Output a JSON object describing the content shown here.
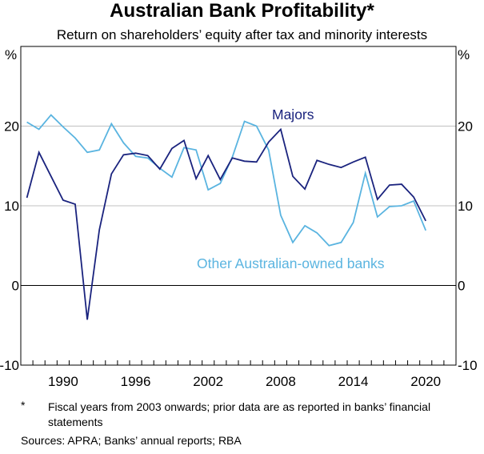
{
  "title": "Australian Bank Profitability*",
  "subtitle": "Return on shareholders’ equity after tax and minority interests",
  "footnote": {
    "marker": "*",
    "text": "Fiscal years from 2003 onwards; prior data are as reported in banks’ financial statements"
  },
  "sources": "Sources: APRA; Banks’ annual reports; RBA",
  "colors": {
    "majors": "#1a237e",
    "other": "#5ab4e0",
    "grid": "#c0c0c0"
  },
  "chart_data": {
    "type": "line",
    "title": "Australian Bank Profitability*",
    "subtitle": "Return on shareholders’ equity after tax and minority interests",
    "unit_left": "%",
    "unit_right": "%",
    "ylim": [
      -10,
      30
    ],
    "yticks": [
      -10,
      0,
      10,
      20
    ],
    "ytick_labels": [
      "-10",
      "0",
      "10",
      "20"
    ],
    "xlim": [
      1986.5,
      2022.5
    ],
    "xticks": [
      1990,
      1996,
      2002,
      2008,
      2014,
      2020
    ],
    "xtick_labels": [
      "1990",
      "1996",
      "2002",
      "2008",
      "2014",
      "2020"
    ],
    "grid": true,
    "series": [
      {
        "name": "Majors",
        "x": [
          1987,
          1988,
          1989,
          1990,
          1991,
          1992,
          1993,
          1994,
          1995,
          1996,
          1997,
          1998,
          1999,
          2000,
          2001,
          2002,
          2003,
          2004,
          2005,
          2006,
          2007,
          2008,
          2009,
          2010,
          2011,
          2012,
          2013,
          2014,
          2015,
          2016,
          2017,
          2018,
          2019,
          2020
        ],
        "values": [
          11.0,
          16.7,
          13.7,
          10.7,
          10.2,
          -4.3,
          7.0,
          14.0,
          16.4,
          16.6,
          16.3,
          14.6,
          17.2,
          18.2,
          13.4,
          16.3,
          13.3,
          16.0,
          15.6,
          15.5,
          18.0,
          19.6,
          13.7,
          12.1,
          15.7,
          15.2,
          14.8,
          15.5,
          16.1,
          10.8,
          12.6,
          12.7,
          11.1,
          8.1
        ]
      },
      {
        "name": "Other Australian-owned banks",
        "x": [
          1987,
          1988,
          1989,
          1990,
          1991,
          1992,
          1993,
          1994,
          1995,
          1996,
          1997,
          1998,
          1999,
          2000,
          2001,
          2002,
          2003,
          2004,
          2005,
          2006,
          2007,
          2008,
          2009,
          2010,
          2011,
          2012,
          2013,
          2014,
          2015,
          2016,
          2017,
          2018,
          2019,
          2020
        ],
        "values": [
          20.5,
          19.6,
          21.4,
          19.9,
          18.5,
          16.7,
          17.0,
          20.3,
          17.9,
          16.2,
          16.0,
          14.7,
          13.6,
          17.3,
          17.0,
          12.0,
          12.8,
          16.1,
          20.6,
          20.0,
          17.0,
          8.8,
          5.4,
          7.5,
          6.6,
          5.0,
          5.4,
          7.9,
          14.1,
          8.6,
          9.9,
          10.0,
          10.6,
          6.9
        ]
      }
    ]
  }
}
